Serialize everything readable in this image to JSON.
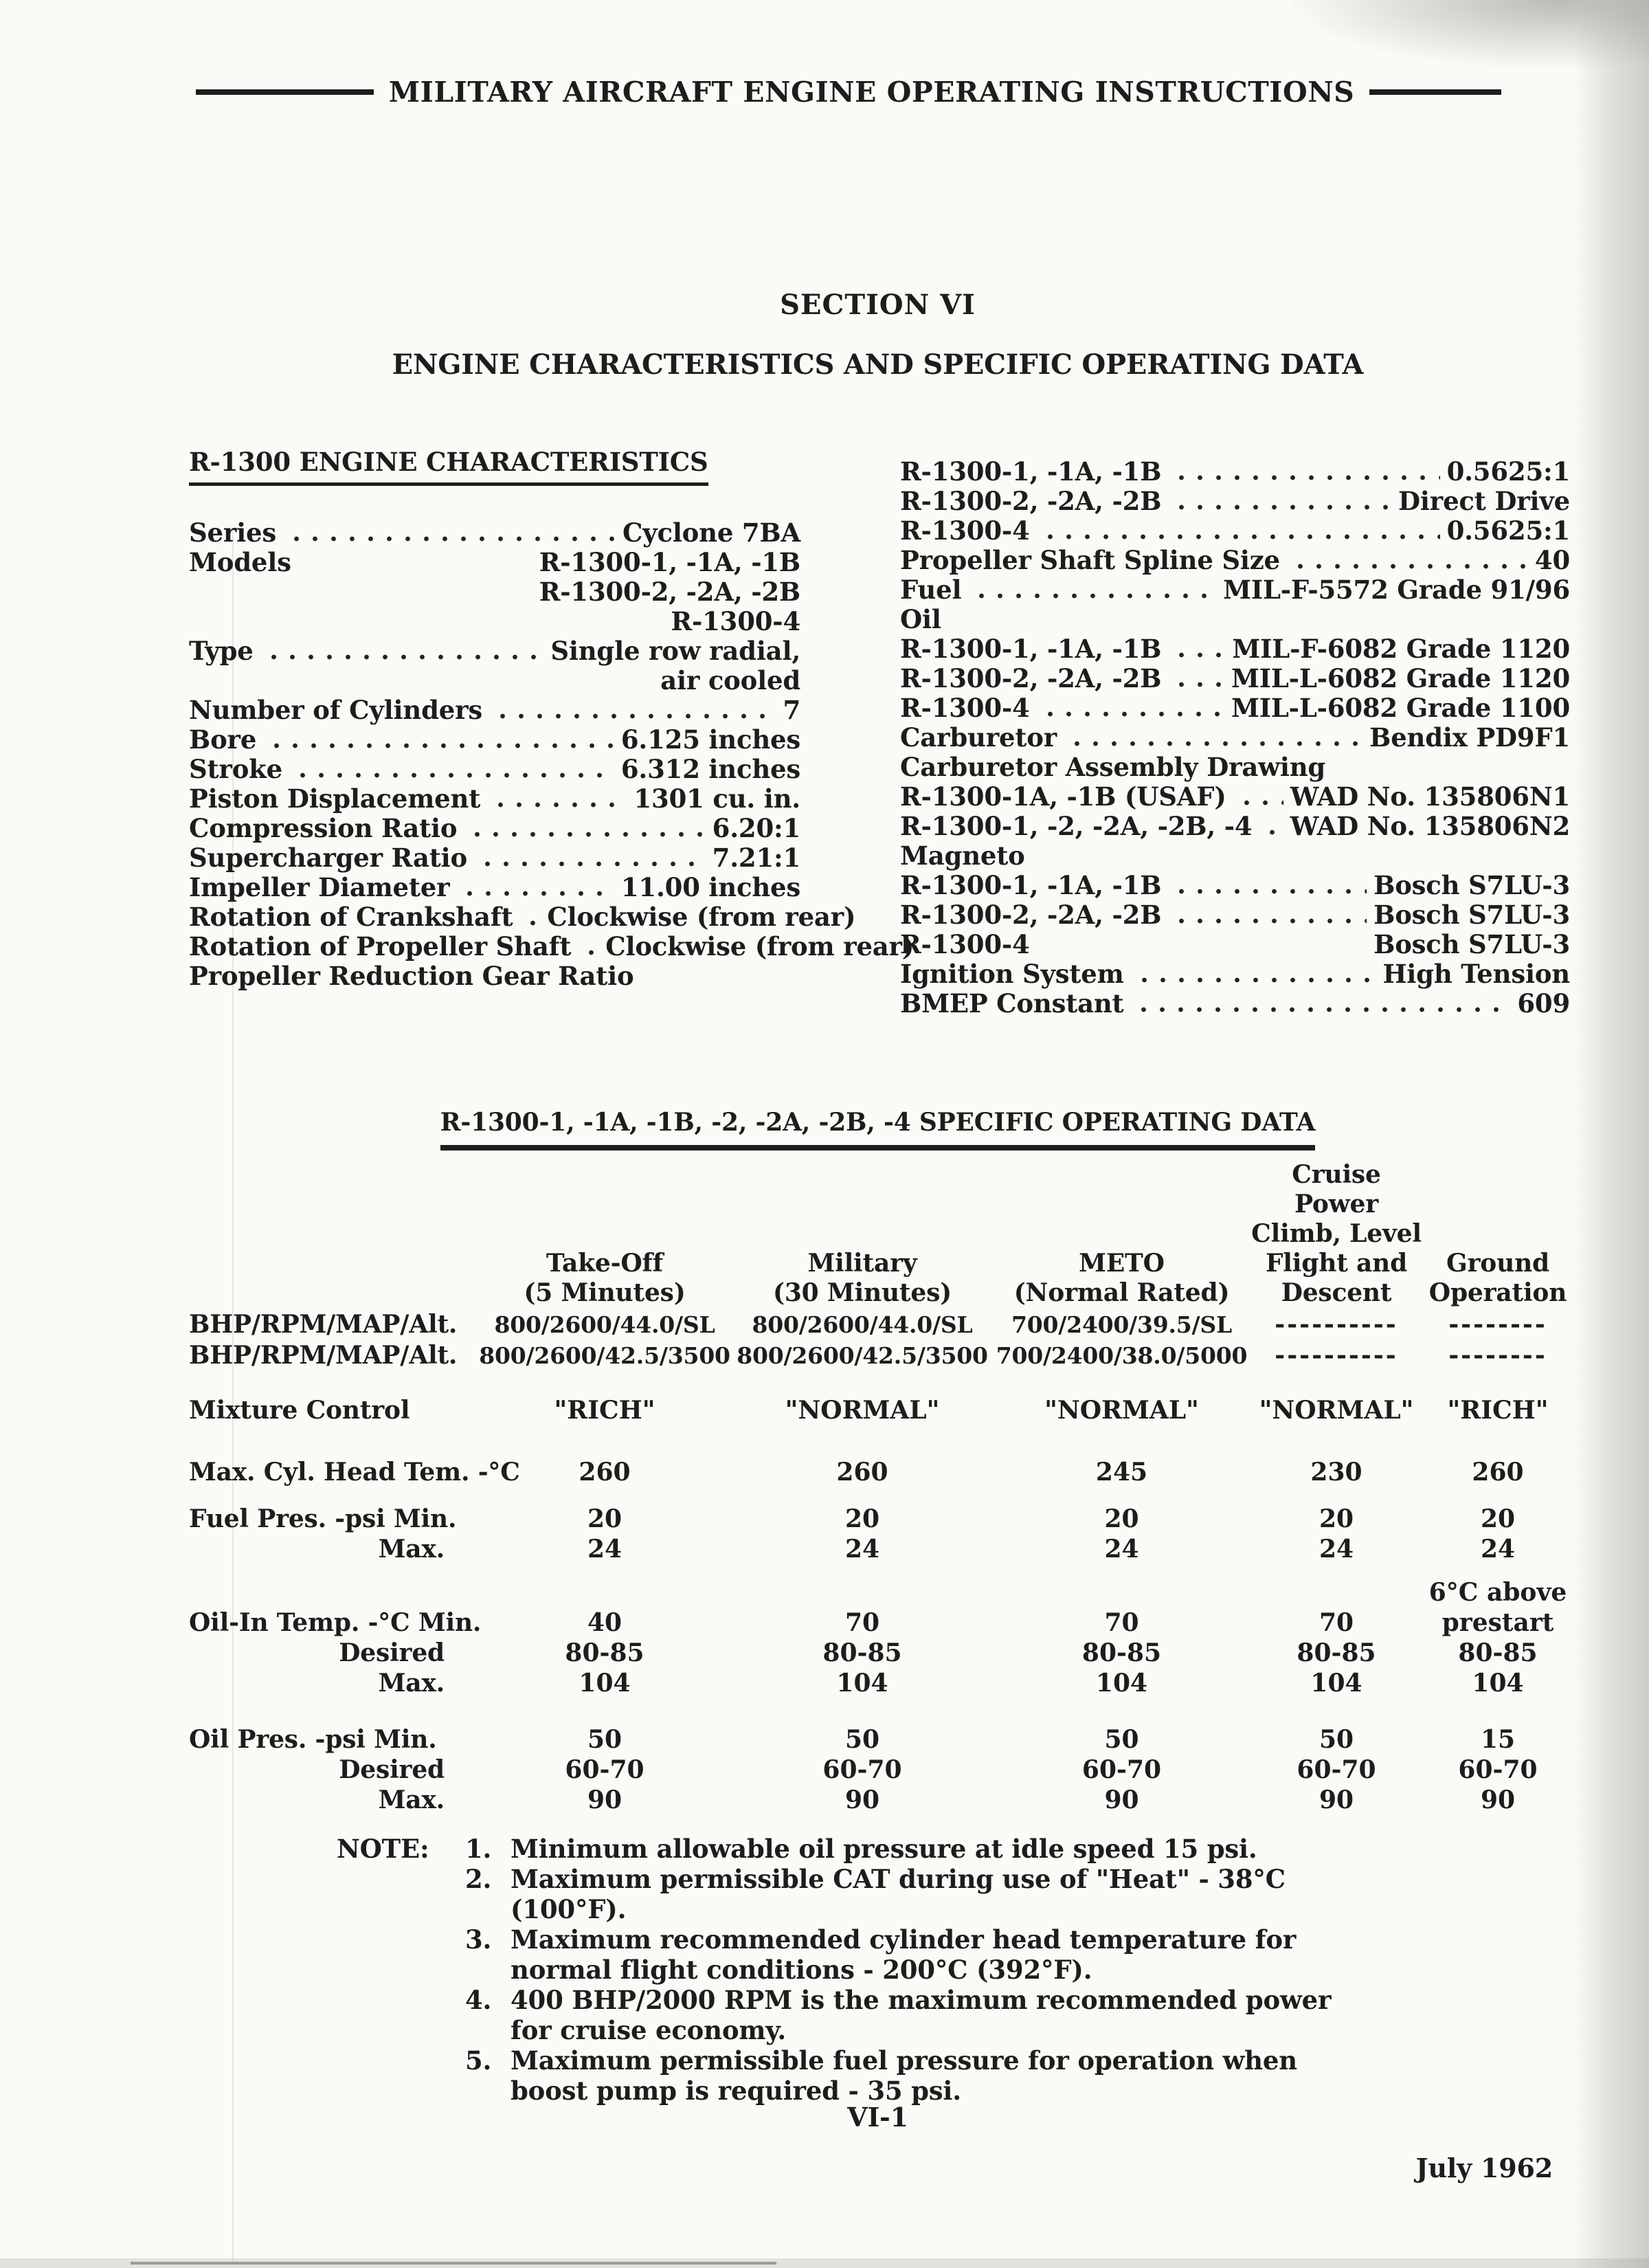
{
  "colors": {
    "ink": "#1d1d1d",
    "paper": "#fbfaf6"
  },
  "header": {
    "title": "MILITARY AIRCRAFT ENGINE OPERATING INSTRUCTIONS"
  },
  "section": {
    "number": "SECTION VI",
    "title": "ENGINE CHARACTERISTICS AND SPECIFIC OPERATING DATA"
  },
  "left_column": {
    "heading": "R-1300 ENGINE CHARACTERISTICS",
    "items": [
      {
        "label": "Series",
        "dots": true,
        "value": "Cyclone 7BA"
      },
      {
        "label": "Models",
        "dots": false,
        "value": "R-1300-1, -1A, -1B"
      },
      {
        "label": "",
        "dots": false,
        "value": "R-1300-2, -2A, -2B"
      },
      {
        "label": "",
        "dots": false,
        "value": "R-1300-4"
      },
      {
        "label": "Type",
        "dots": true,
        "value": "Single row radial,"
      },
      {
        "label": "",
        "dots": false,
        "value": "air cooled"
      },
      {
        "label": "Number of Cylinders",
        "dots": true,
        "value": "7"
      },
      {
        "label": "Bore",
        "dots": true,
        "value": "6.125 inches"
      },
      {
        "label": "Stroke",
        "dots": true,
        "value": "6.312 inches"
      },
      {
        "label": "Piston Displacement",
        "dots": true,
        "value": "1301 cu. in."
      },
      {
        "label": "Compression Ratio",
        "dots": true,
        "value": "6.20:1"
      },
      {
        "label": "Supercharger Ratio",
        "dots": true,
        "value": "7.21:1"
      },
      {
        "label": "Impeller Diameter",
        "dots": true,
        "value": "11.00 inches"
      },
      {
        "label": "Rotation of Crankshaft",
        "dots": true,
        "value": "Clockwise (from rear)"
      },
      {
        "label": "Rotation of Propeller Shaft",
        "dots": true,
        "value": "Clockwise (from rear)"
      },
      {
        "label": "Propeller Reduction Gear Ratio",
        "dots": false,
        "value": ""
      }
    ]
  },
  "right_column": {
    "items": [
      {
        "label": "R-1300-1, -1A, -1B",
        "dots": true,
        "value": "0.5625:1"
      },
      {
        "label": "R-1300-2, -2A, -2B",
        "dots": true,
        "value": "Direct Drive"
      },
      {
        "label": "R-1300-4",
        "dots": true,
        "value": "0.5625:1"
      },
      {
        "label": "Propeller Shaft Spline Size",
        "dots": true,
        "value": "40"
      },
      {
        "label": "Fuel",
        "dots": true,
        "value": "MIL-F-5572 Grade 91/96"
      },
      {
        "label": "Oil",
        "dots": false,
        "value": ""
      },
      {
        "label": "R-1300-1, -1A, -1B",
        "dots": true,
        "value": "MIL-F-6082 Grade 1120"
      },
      {
        "label": "R-1300-2, -2A, -2B",
        "dots": true,
        "value": "MIL-L-6082 Grade 1120"
      },
      {
        "label": "R-1300-4",
        "dots": true,
        "value": "MIL-L-6082 Grade 1100"
      },
      {
        "label": "Carburetor",
        "dots": true,
        "value": "Bendix PD9F1"
      },
      {
        "label": "Carburetor Assembly Drawing",
        "dots": false,
        "value": ""
      },
      {
        "label": "R-1300-1A, -1B (USAF)",
        "dots": true,
        "value": "WAD No. 135806N1"
      },
      {
        "label": "R-1300-1, -2, -2A, -2B, -4",
        "dots": true,
        "value": "WAD No. 135806N2"
      },
      {
        "label": "Magneto",
        "dots": false,
        "value": ""
      },
      {
        "label": "R-1300-1, -1A, -1B",
        "dots": true,
        "value": "Bosch S7LU-3"
      },
      {
        "label": "R-1300-2, -2A, -2B",
        "dots": true,
        "value": "Bosch S7LU-3"
      },
      {
        "label": "R-1300-4",
        "dots": false,
        "value": "Bosch S7LU-3"
      },
      {
        "label": "Ignition System",
        "dots": true,
        "value": "High Tension"
      },
      {
        "label": "BMEP Constant",
        "dots": true,
        "value": "609"
      }
    ]
  },
  "table": {
    "title": "R-1300-1, -1A, -1B, -2, -2A, -2B, -4 SPECIFIC OPERATING DATA",
    "col_headers": [
      [
        "Take-Off",
        "(5 Minutes)"
      ],
      [
        "Military",
        "(30 Minutes)"
      ],
      [
        "METO",
        "(Normal Rated)"
      ],
      [
        "Cruise Power",
        "Climb, Level",
        "Flight and",
        "Descent"
      ],
      [
        "Ground",
        "Operation"
      ]
    ],
    "rows": [
      {
        "label": "BHP/RPM/MAP/Alt.",
        "bhp": true,
        "values": [
          "800/2600/44.0/SL",
          "800/2600/44.0/SL",
          "700/2400/39.5/SL",
          "----------",
          "--------"
        ]
      },
      {
        "label": "BHP/RPM/MAP/Alt.",
        "bhp": true,
        "values": [
          "800/2600/42.5/3500",
          "800/2600/42.5/3500",
          "700/2400/38.0/5000",
          "----------",
          "--------"
        ]
      },
      {
        "label": "Mixture Control",
        "mix": true,
        "values": [
          "\"RICH\"",
          "\"NORMAL\"",
          "\"NORMAL\"",
          "\"NORMAL\"",
          "\"RICH\""
        ]
      },
      {
        "label": "Max. Cyl. Head Tem. -°C",
        "mix": true,
        "values": [
          "260",
          "260",
          "245",
          "230",
          "260"
        ]
      },
      {
        "label": "Fuel Pres. -psi Min.",
        "mix": true,
        "values": [
          "20",
          "20",
          "20",
          "20",
          "20"
        ]
      },
      {
        "label": "Max.",
        "sub": true,
        "mix": true,
        "values": [
          "24",
          "24",
          "24",
          "24",
          "24"
        ]
      },
      {
        "label": "Oil-In Temp. -°C Min.",
        "mix": true,
        "pre": "6°C above",
        "values": [
          "40",
          "70",
          "70",
          "70",
          "prestart"
        ]
      },
      {
        "label": "Desired",
        "sub": true,
        "mix": true,
        "values": [
          "80-85",
          "80-85",
          "80-85",
          "80-85",
          "80-85"
        ]
      },
      {
        "label": "Max.",
        "sub": true,
        "mix": true,
        "values": [
          "104",
          "104",
          "104",
          "104",
          "104"
        ]
      },
      {
        "label": "Oil Pres. -psi Min.",
        "mix": true,
        "values": [
          "50",
          "50",
          "50",
          "50",
          "15"
        ]
      },
      {
        "label": "Desired",
        "sub": true,
        "mix": true,
        "values": [
          "60-70",
          "60-70",
          "60-70",
          "60-70",
          "60-70"
        ]
      },
      {
        "label": "Max.",
        "sub": true,
        "mix": true,
        "values": [
          "90",
          "90",
          "90",
          "90",
          "90"
        ]
      }
    ]
  },
  "note": {
    "label": "NOTE:",
    "items": [
      {
        "num": "1.",
        "text": "Minimum allowable oil pressure at idle speed 15 psi."
      },
      {
        "num": "2.",
        "text": "Maximum permissible CAT during use of \"Heat\" - 38°C (100°F)."
      },
      {
        "num": "3.",
        "text": "Maximum recommended cylinder head temperature for normal flight conditions - 200°C (392°F)."
      },
      {
        "num": "4.",
        "text": "400 BHP/2000 RPM is the maximum recommended power for cruise economy."
      },
      {
        "num": "5.",
        "text": "Maximum permissible fuel pressure for operation when boost pump is required - 35 psi."
      }
    ]
  },
  "footer": {
    "page_number": "VI-1",
    "date": "July 1962"
  }
}
